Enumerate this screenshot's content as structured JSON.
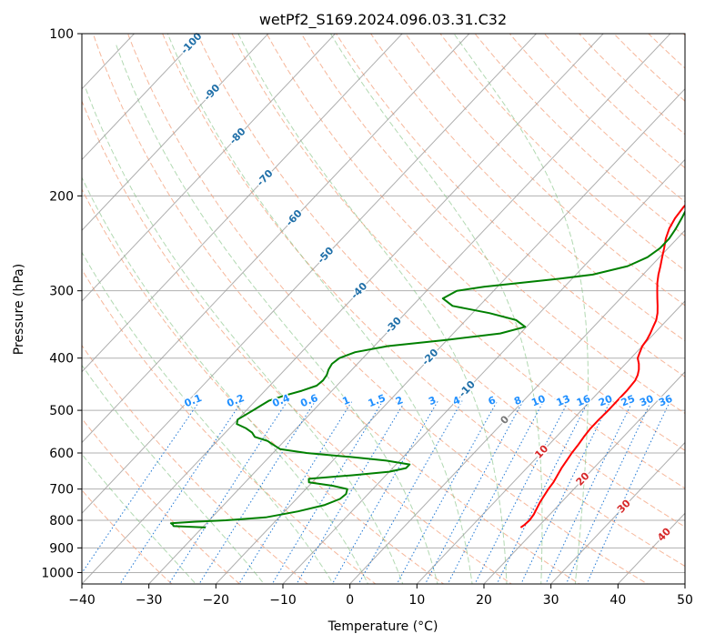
{
  "chart_data": {
    "type": "line",
    "chart_kind": "skew-t log-p diagram",
    "title": "wetPf2_S169.2024.096.03.31.C32",
    "xlabel": "Temperature (°C)",
    "ylabel": "Pressure (hPa)",
    "xlim": [
      -40,
      50
    ],
    "ylim": [
      1050,
      100
    ],
    "y_scale": "log",
    "grid": true,
    "x_ticks": [
      -40,
      -30,
      -20,
      -10,
      0,
      10,
      20,
      30,
      40,
      50
    ],
    "x_tick_labels": [
      "−40",
      "−30",
      "−20",
      "−10",
      "0",
      "10",
      "20",
      "30",
      "40",
      "50"
    ],
    "y_ticks": [
      100,
      200,
      300,
      400,
      500,
      600,
      700,
      800,
      900,
      1000
    ],
    "y_tick_labels": [
      "100",
      "200",
      "300",
      "400",
      "500",
      "600",
      "700",
      "800",
      "900",
      "1000"
    ],
    "isotherm_labels": [
      {
        "text": "-100",
        "t": -100
      },
      {
        "text": "-90",
        "t": -90
      },
      {
        "text": "-80",
        "t": -80
      },
      {
        "text": "-70",
        "t": -70
      },
      {
        "text": "-60",
        "t": -60
      },
      {
        "text": "-50",
        "t": -50
      },
      {
        "text": "-40",
        "t": -40
      },
      {
        "text": "-30",
        "t": -30
      },
      {
        "text": "-20",
        "t": -20
      },
      {
        "text": "-10",
        "t": -10
      },
      {
        "text": "0",
        "t": 0
      }
    ],
    "mixing_ratio_labels": [
      "0.1",
      "0.2",
      "0.4",
      "0.6",
      "1",
      "1.5",
      "2",
      "3",
      "4",
      "6",
      "8",
      "10",
      "13",
      "16",
      "20",
      "25",
      "30",
      "36"
    ],
    "warm_isotherm_labels": [
      {
        "text": "10",
        "t": 10
      },
      {
        "text": "20",
        "t": 20
      },
      {
        "text": "30",
        "t": 30
      },
      {
        "text": "40",
        "t": 40
      }
    ],
    "series": [
      {
        "color": "#ff0000",
        "p": [
          825,
          815,
          800,
          780,
          760,
          740,
          720,
          700,
          680,
          660,
          640,
          620,
          600,
          580,
          560,
          540,
          520,
          500,
          480,
          460,
          440,
          430,
          420,
          410,
          400,
          390,
          380,
          370,
          360,
          350,
          340,
          330,
          320,
          310,
          300,
          290,
          280,
          270,
          260,
          250,
          240,
          230,
          220,
          210,
          200,
          195,
          190,
          185,
          180,
          175,
          170,
          165,
          160,
          155,
          150,
          145,
          140,
          135,
          130,
          125,
          120,
          115,
          110,
          105,
          100
        ],
        "t": [
          17.5,
          17.7,
          17.8,
          17.6,
          17.2,
          16.8,
          16.5,
          16.2,
          16.0,
          15.6,
          15.2,
          14.9,
          14.6,
          14.4,
          14.1,
          13.9,
          13.9,
          14.0,
          14.0,
          14.0,
          13.8,
          13.4,
          12.8,
          12.0,
          11.0,
          10.5,
          10.0,
          9.8,
          9.4,
          8.9,
          8.4,
          7.6,
          6.6,
          5.5,
          4.4,
          3.3,
          2.3,
          1.4,
          0.4,
          -0.6,
          -1.7,
          -2.6,
          -3.2,
          -3.5,
          -3.6,
          -3.6,
          -3.6,
          -3.4,
          -3.0,
          -2.4,
          -1.6,
          -0.7,
          0.3,
          1.3,
          2.3,
          3.4,
          4.6,
          5.9,
          7.6,
          9.6,
          11.9,
          14.7,
          17.6,
          20.0,
          21.5
        ]
      },
      {
        "color": "#008000",
        "p": [
          825,
          820,
          815,
          810,
          805,
          800,
          790,
          770,
          750,
          730,
          715,
          700,
          690,
          680,
          670,
          660,
          650,
          640,
          630,
          620,
          610,
          600,
          590,
          580,
          570,
          560,
          550,
          540,
          530,
          520,
          510,
          500,
          490,
          480,
          470,
          460,
          450,
          440,
          430,
          420,
          410,
          400,
          390,
          380,
          370,
          360,
          350,
          340,
          330,
          320,
          310,
          300,
          295,
          290,
          285,
          280,
          270,
          260,
          250,
          240,
          230,
          220,
          210,
          200,
          190,
          180,
          170,
          160,
          150,
          145,
          140,
          135,
          130,
          125,
          120,
          115,
          110,
          105,
          100
        ],
        "t": [
          -29.5,
          -34.5,
          -34.8,
          -35.3,
          -32.0,
          -27.5,
          -22.0,
          -18.0,
          -15.0,
          -13.5,
          -13.3,
          -13.8,
          -16.5,
          -20.5,
          -21.0,
          -15.0,
          -10.0,
          -8.0,
          -8.0,
          -12.0,
          -18.0,
          -25.0,
          -29.5,
          -31.0,
          -32.5,
          -35.0,
          -36.0,
          -37.5,
          -39.5,
          -40.0,
          -39.5,
          -39.0,
          -38.5,
          -38.0,
          -36.5,
          -34.5,
          -33.0,
          -32.8,
          -33.0,
          -33.5,
          -33.8,
          -33.5,
          -32.0,
          -28.0,
          -20.0,
          -13.0,
          -10.2,
          -12.5,
          -17.5,
          -24.0,
          -26.5,
          -25.5,
          -22.0,
          -17.0,
          -12.0,
          -7.5,
          -3.5,
          -1.8,
          -1.2,
          -1.2,
          -1.6,
          -2.2,
          -2.9,
          -3.6,
          -5.0,
          -6.6,
          -8.3,
          -10.0,
          -11.8,
          -13.0,
          -14.3,
          -15.2,
          -15.2,
          -14.5,
          -13.8,
          -13.5,
          -12.3,
          -10.6,
          -9.0
        ]
      }
    ]
  }
}
